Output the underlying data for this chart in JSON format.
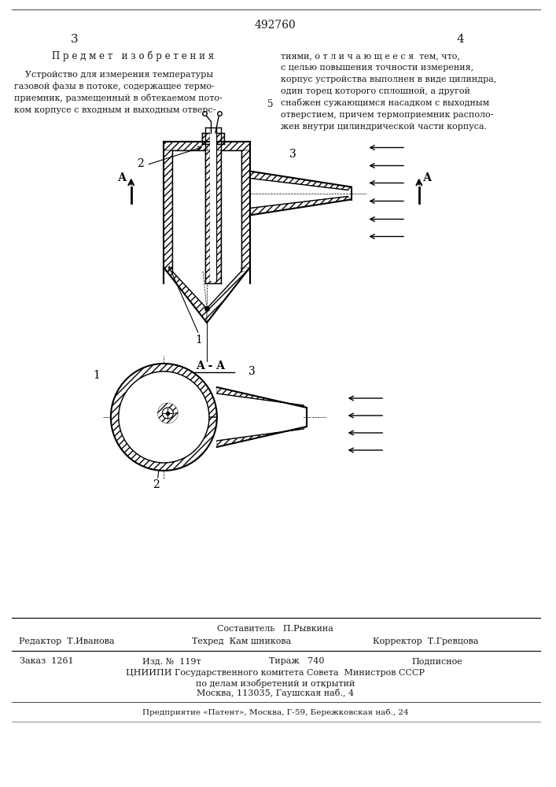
{
  "patent_number": "492760",
  "page_left": "3",
  "page_right": "4",
  "title_text": "П р е д м е т   и з о б р е т е н и я",
  "body_left_lines": [
    "    Устройство для измерения температуры",
    "газовой фазы в потоке, содержащее термо-",
    "приемник, размещенный в обтекаемом пото-",
    "ком корпусе с входным и выходным отверс-"
  ],
  "number_5": "5",
  "body_right_lines": [
    "тиями, о т л и ч а ю щ е е с я  тем, что,",
    "с целью повышения точности измерения,",
    "корпус устройства выполнен в виде цилиндра,",
    "один торец которого сплошной, а другой",
    "снабжен сужающимся насадком с выходным",
    "отверстием, причем термоприемник располо-",
    "жен внутри цилиндрической части корпуса."
  ],
  "label_AA": "A - A",
  "footer_compiler": "Составитель   П.Рывкина",
  "footer_editor": "Редактор  Т.Иванова",
  "footer_tech": "Техред  Кам шникова",
  "footer_corrector": "Корректор  Т.Гревцова",
  "footer_order": "Заказ  1261",
  "footer_izd": "Изд. №  119т",
  "footer_tirazh": "Тираж   740",
  "footer_podpisnoe": "Подписное",
  "footer_org1": "ЦНИИПИ Государственного комитета Совета  Министров СССР",
  "footer_org2": "по делам изобретений и открытий",
  "footer_org3": "Москва, 113035, Гаушская наб., 4",
  "footer_org4": "Предприятие «Патент», Москва, Г-59, Бережковская наб., 24",
  "bg_color": "#ffffff",
  "text_color": "#1a1a1a"
}
